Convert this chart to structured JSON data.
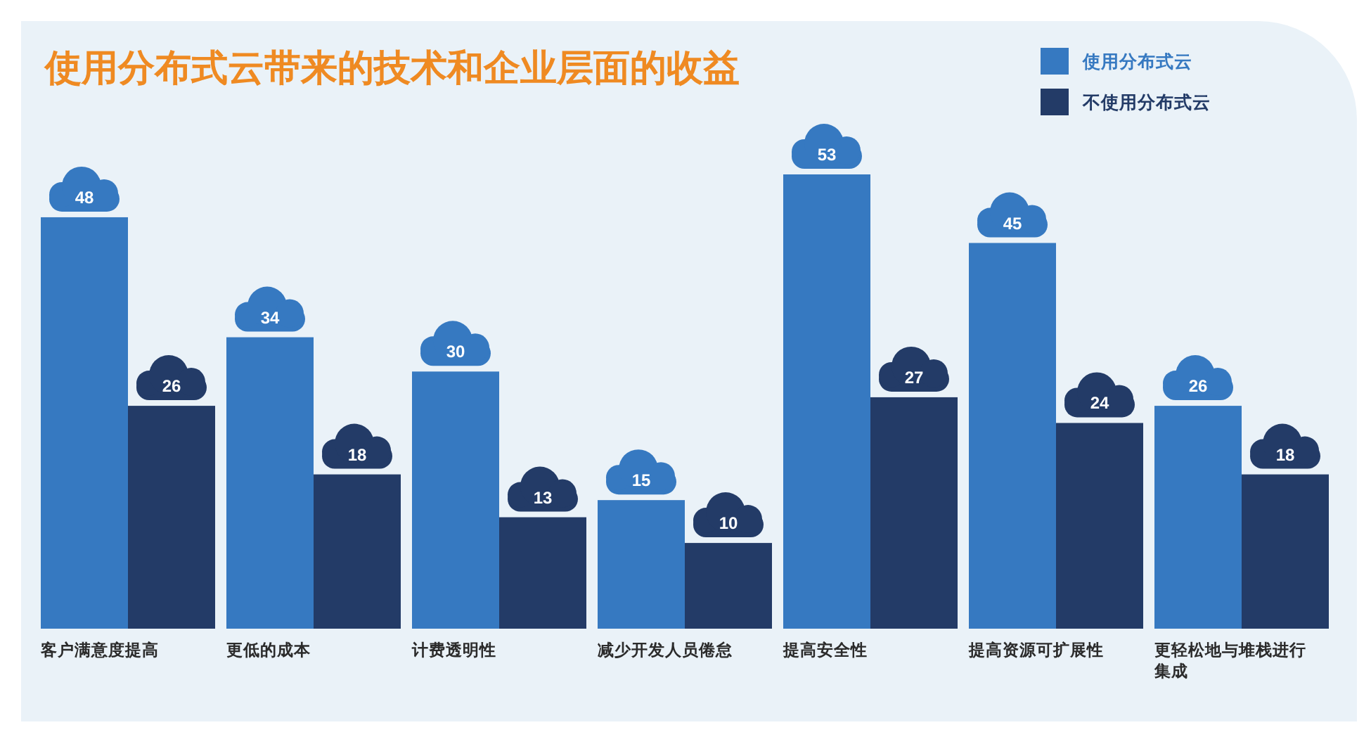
{
  "chart_data": {
    "type": "bar",
    "title": "使用分布式云带来的技术和企业层面的收益",
    "categories": [
      "客户满意度提高",
      "更低的成本",
      "计费透明性",
      "减少开发人员倦怠",
      "提高安全性",
      "提高资源可扩展性",
      "更轻松地与堆栈进行集成"
    ],
    "series": [
      {
        "name": "使用分布式云",
        "color": "#3679c1",
        "values": [
          48,
          34,
          30,
          15,
          53,
          45,
          26
        ]
      },
      {
        "name": "不使用分布式云",
        "color": "#233b67",
        "values": [
          26,
          18,
          13,
          10,
          27,
          24,
          18
        ]
      }
    ],
    "data_labels": true,
    "legend": "top right"
  }
}
